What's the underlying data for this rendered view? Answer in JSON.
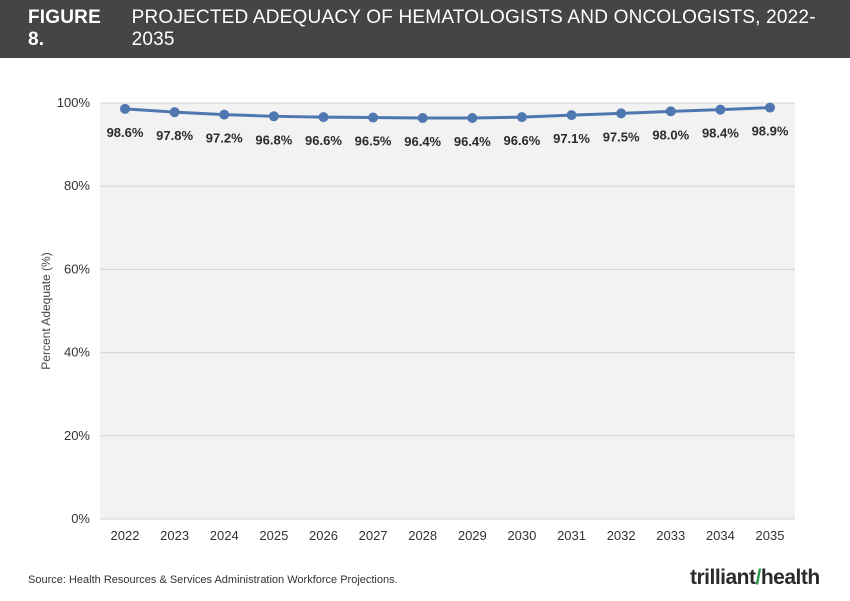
{
  "header": {
    "figure_label": "FIGURE 8.",
    "title": "PROJECTED ADEQUACY OF HEMATOLOGISTS AND ONCOLOGISTS, 2022-2035"
  },
  "footer": {
    "source": "Source: Health Resources & Services Administration Workforce Projections.",
    "logo_text": "trilliant",
    "logo_text_2": "health"
  },
  "colors": {
    "header_bg": "#454545",
    "plot_bg": "#f2f2f2",
    "series": "#5078b0",
    "logo_accent": "#2e9c4f"
  },
  "chart_data": {
    "type": "line",
    "title": "PROJECTED ADEQUACY OF HEMATOLOGISTS AND ONCOLOGISTS, 2022-2035",
    "xlabel": "",
    "ylabel": "Percent Adequate (%)",
    "ylim": [
      0,
      100
    ],
    "yticks": [
      0,
      20,
      40,
      60,
      80,
      100
    ],
    "ytick_labels": [
      "0%",
      "20%",
      "40%",
      "60%",
      "80%",
      "100%"
    ],
    "grid": true,
    "legend": "none",
    "categories": [
      "2022",
      "2023",
      "2024",
      "2025",
      "2026",
      "2027",
      "2028",
      "2029",
      "2030",
      "2031",
      "2032",
      "2033",
      "2034",
      "2035"
    ],
    "series": [
      {
        "values": [
          98.6,
          97.8,
          97.2,
          96.8,
          96.6,
          96.5,
          96.4,
          96.4,
          96.6,
          97.1,
          97.5,
          98.0,
          98.4,
          98.9
        ],
        "data_labels": [
          "98.6%",
          "97.8%",
          "97.2%",
          "96.8%",
          "96.6%",
          "96.5%",
          "96.4%",
          "96.4%",
          "96.6%",
          "97.1%",
          "97.5%",
          "98.0%",
          "98.4%",
          "98.9%"
        ]
      }
    ]
  }
}
